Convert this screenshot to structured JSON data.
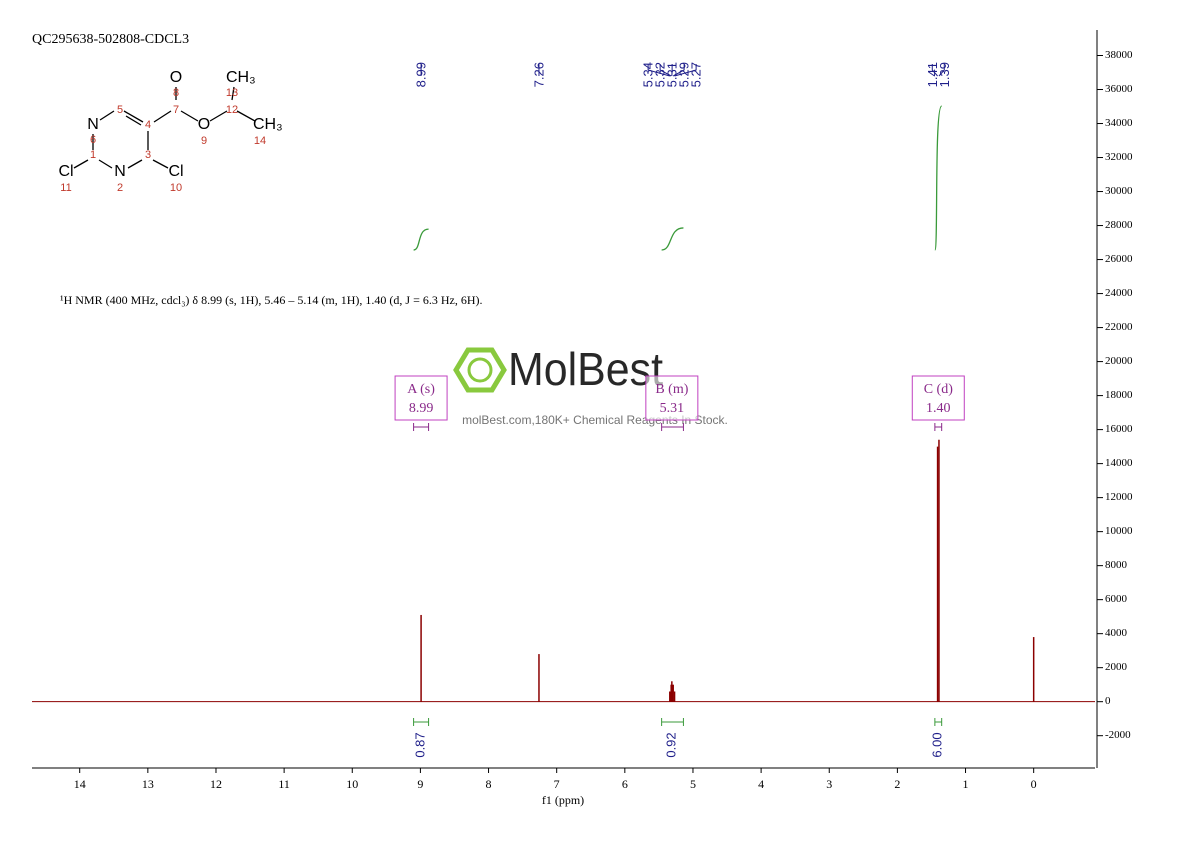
{
  "chart_data": {
    "type": "nmr",
    "title": "QC295638-502808-CDCL3",
    "description": "¹H NMR (400 MHz, cdcl₃) δ 8.99 (s, 1H), 5.46 – 5.14 (m, 1H), 1.40 (d, J = 6.3 Hz, 6H).",
    "structure": {
      "atoms": [
        "O",
        "CH₃",
        "N",
        "O",
        "CH₃",
        "Cl",
        "N",
        "Cl"
      ],
      "numbers": [
        "8",
        "13",
        "7",
        "12",
        "5",
        "4",
        "6",
        "9",
        "14",
        "1",
        "3",
        "11",
        "2",
        "10"
      ]
    },
    "watermark": {
      "logo": "MolBest",
      "text": "molBest.com,180K+ Chemical Reagents In Stock."
    },
    "x_label": "f1 (ppm)",
    "xlim": [
      14.7,
      -0.9
    ],
    "xticks": [
      14,
      13,
      12,
      11,
      10,
      9,
      8,
      7,
      6,
      5,
      4,
      3,
      2,
      1,
      0
    ],
    "ylim": [
      -3900,
      39500
    ],
    "yticks": [
      -2000,
      0,
      2000,
      4000,
      6000,
      8000,
      10000,
      12000,
      14000,
      16000,
      18000,
      20000,
      22000,
      24000,
      26000,
      28000,
      30000,
      32000,
      34000,
      36000,
      38000
    ],
    "color": "#8b0000",
    "integral_color": "#3a9a3a",
    "label_color": "#1f1f8a",
    "peaks": {
      "x": [
        8.99,
        7.26,
        5.34,
        5.32,
        5.31,
        5.29,
        5.27,
        1.41,
        1.39,
        0
      ],
      "values": [
        5100,
        2800,
        600,
        1000,
        1200,
        1000,
        600,
        15000,
        15400,
        3800
      ]
    },
    "peak_labels": [
      8.99,
      7.26,
      5.34,
      5.32,
      5.31,
      5.29,
      5.27,
      1.41,
      1.39
    ],
    "multiplets": [
      {
        "label": "A (s)",
        "shift": 8.99,
        "range": [
          9.1,
          8.88
        ],
        "integral": 0.87
      },
      {
        "label": "B (m)",
        "shift": 5.31,
        "range": [
          5.46,
          5.14
        ],
        "integral": 0.92
      },
      {
        "label": "C (d)",
        "shift": {
          "value": 1.4,
          "label": "1.40"
        },
        "range": [
          1.45,
          1.35
        ],
        "integral": {
          "value": 6,
          "label": "6.00"
        }
      }
    ]
  }
}
